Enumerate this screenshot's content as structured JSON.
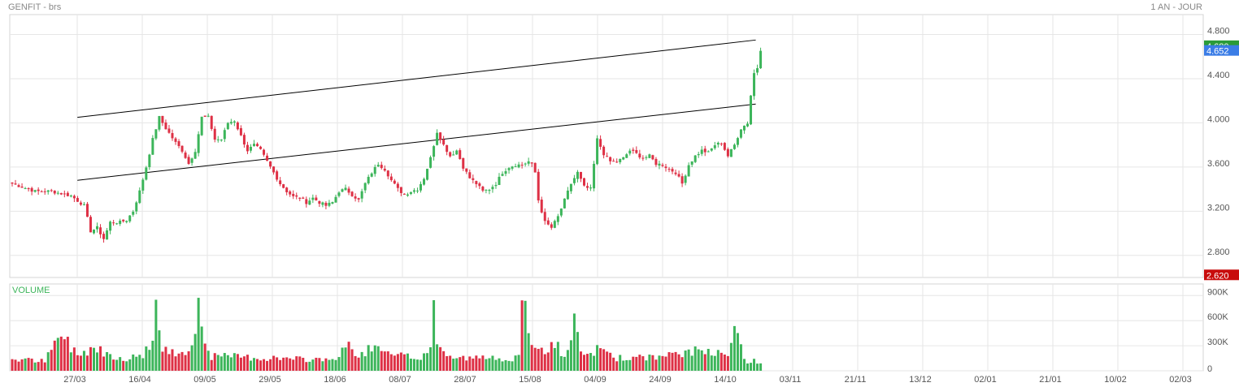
{
  "header": {
    "title": "GENFIT - brs",
    "period": "1 AN - JOUR"
  },
  "colors": {
    "up": "#3cb55a",
    "down": "#de3045",
    "grid": "#e6e6e6",
    "border": "#d4d4d4",
    "text": "#555555",
    "line": "#000000",
    "last_label_bg": "#3b7de6",
    "high_label_bg": "#2a9b38",
    "low_label_bg": "#c80c0c",
    "volume_label": "#3cb55a"
  },
  "chart_data": {
    "type": "candlestick",
    "x_labels": [
      "27/03",
      "16/04",
      "09/05",
      "29/05",
      "18/06",
      "08/07",
      "28/07",
      "15/08",
      "04/09",
      "24/09",
      "14/10",
      "03/11",
      "21/11",
      "13/12",
      "02/01",
      "21/01",
      "10/02",
      "02/03"
    ],
    "price_ticks": [
      "4.800",
      "4.400",
      "4.000",
      "3.600",
      "3.200",
      "2.800"
    ],
    "price_ylim": [
      2.6,
      4.98
    ],
    "price_labels": {
      "last": "4.652",
      "high": "4.680",
      "low": "2.620"
    },
    "volume": {
      "label": "VOLUME",
      "ticks": [
        "900K",
        "600K",
        "300K",
        "0"
      ],
      "ylim": [
        0,
        1000000
      ]
    },
    "close_anchors": [
      [
        0,
        3.45
      ],
      [
        7,
        3.38
      ],
      [
        12,
        3.38
      ],
      [
        18,
        3.34
      ],
      [
        22,
        3.25
      ],
      [
        24,
        3.02
      ],
      [
        26,
        3.05
      ],
      [
        28,
        2.95
      ],
      [
        30,
        3.1
      ],
      [
        33,
        3.1
      ],
      [
        35,
        3.12
      ],
      [
        37,
        3.2
      ],
      [
        39,
        3.38
      ],
      [
        41,
        3.6
      ],
      [
        43,
        3.85
      ],
      [
        45,
        4.05
      ],
      [
        47,
        3.95
      ],
      [
        50,
        3.82
      ],
      [
        52,
        3.75
      ],
      [
        54,
        3.63
      ],
      [
        56,
        3.75
      ],
      [
        58,
        4.05
      ],
      [
        60,
        4.05
      ],
      [
        62,
        3.85
      ],
      [
        64,
        3.85
      ],
      [
        66,
        4.0
      ],
      [
        68,
        4.02
      ],
      [
        70,
        3.88
      ],
      [
        72,
        3.75
      ],
      [
        74,
        3.8
      ],
      [
        76,
        3.75
      ],
      [
        78,
        3.65
      ],
      [
        80,
        3.55
      ],
      [
        82,
        3.45
      ],
      [
        84,
        3.38
      ],
      [
        86,
        3.33
      ],
      [
        88,
        3.32
      ],
      [
        90,
        3.28
      ],
      [
        92,
        3.32
      ],
      [
        94,
        3.28
      ],
      [
        96,
        3.25
      ],
      [
        98,
        3.28
      ],
      [
        100,
        3.38
      ],
      [
        102,
        3.4
      ],
      [
        104,
        3.35
      ],
      [
        106,
        3.3
      ],
      [
        108,
        3.45
      ],
      [
        110,
        3.55
      ],
      [
        112,
        3.63
      ],
      [
        114,
        3.58
      ],
      [
        116,
        3.48
      ],
      [
        118,
        3.4
      ],
      [
        120,
        3.35
      ],
      [
        122,
        3.38
      ],
      [
        124,
        3.4
      ],
      [
        126,
        3.5
      ],
      [
        128,
        3.68
      ],
      [
        130,
        3.92
      ],
      [
        132,
        3.8
      ],
      [
        134,
        3.7
      ],
      [
        136,
        3.75
      ],
      [
        138,
        3.6
      ],
      [
        140,
        3.5
      ],
      [
        142,
        3.45
      ],
      [
        144,
        3.38
      ],
      [
        146,
        3.4
      ],
      [
        148,
        3.45
      ],
      [
        150,
        3.55
      ],
      [
        152,
        3.6
      ],
      [
        154,
        3.62
      ],
      [
        156,
        3.62
      ],
      [
        158,
        3.65
      ],
      [
        159,
        3.62
      ],
      [
        160,
        3.55
      ],
      [
        161,
        3.3
      ],
      [
        163,
        3.1
      ],
      [
        165,
        3.05
      ],
      [
        167,
        3.15
      ],
      [
        169,
        3.3
      ],
      [
        171,
        3.45
      ],
      [
        173,
        3.55
      ],
      [
        175,
        3.42
      ],
      [
        177,
        3.4
      ],
      [
        179,
        3.85
      ],
      [
        181,
        3.72
      ],
      [
        183,
        3.65
      ],
      [
        185,
        3.65
      ],
      [
        187,
        3.68
      ],
      [
        189,
        3.75
      ],
      [
        191,
        3.72
      ],
      [
        193,
        3.68
      ],
      [
        195,
        3.7
      ],
      [
        197,
        3.63
      ],
      [
        199,
        3.62
      ],
      [
        201,
        3.58
      ],
      [
        203,
        3.55
      ],
      [
        205,
        3.45
      ],
      [
        207,
        3.62
      ],
      [
        209,
        3.7
      ],
      [
        211,
        3.75
      ],
      [
        213,
        3.73
      ],
      [
        215,
        3.8
      ],
      [
        217,
        3.82
      ],
      [
        219,
        3.7
      ],
      [
        221,
        3.8
      ],
      [
        223,
        3.95
      ],
      [
        225,
        4.0
      ],
      [
        226,
        4.25
      ],
      [
        227,
        4.45
      ],
      [
        228,
        4.5
      ],
      [
        229,
        4.652
      ]
    ],
    "volume_anchors": [
      [
        0,
        0.15
      ],
      [
        10,
        0.12
      ],
      [
        15,
        0.46
      ],
      [
        20,
        0.2
      ],
      [
        25,
        0.3
      ],
      [
        30,
        0.2
      ],
      [
        35,
        0.15
      ],
      [
        40,
        0.2
      ],
      [
        43,
        0.4
      ],
      [
        44,
        0.8
      ],
      [
        46,
        0.25
      ],
      [
        50,
        0.22
      ],
      [
        55,
        0.3
      ],
      [
        57,
        0.85
      ],
      [
        59,
        0.4
      ],
      [
        61,
        0.18
      ],
      [
        70,
        0.18
      ],
      [
        75,
        0.16
      ],
      [
        80,
        0.16
      ],
      [
        90,
        0.14
      ],
      [
        100,
        0.16
      ],
      [
        103,
        0.38
      ],
      [
        105,
        0.16
      ],
      [
        110,
        0.3
      ],
      [
        115,
        0.2
      ],
      [
        125,
        0.16
      ],
      [
        128,
        0.3
      ],
      [
        129,
        0.9
      ],
      [
        130,
        0.3
      ],
      [
        135,
        0.16
      ],
      [
        150,
        0.16
      ],
      [
        155,
        0.16
      ],
      [
        156,
        0.87
      ],
      [
        157,
        0.7
      ],
      [
        158,
        0.4
      ],
      [
        160,
        0.35
      ],
      [
        162,
        0.25
      ],
      [
        165,
        0.3
      ],
      [
        167,
        0.3
      ],
      [
        169,
        0.15
      ],
      [
        172,
        0.58
      ],
      [
        174,
        0.2
      ],
      [
        177,
        0.2
      ],
      [
        180,
        0.3
      ],
      [
        185,
        0.16
      ],
      [
        190,
        0.16
      ],
      [
        200,
        0.18
      ],
      [
        205,
        0.22
      ],
      [
        210,
        0.25
      ],
      [
        215,
        0.25
      ],
      [
        219,
        0.25
      ],
      [
        220,
        0.28
      ],
      [
        221,
        0.65
      ],
      [
        222,
        0.45
      ],
      [
        223,
        0.3
      ],
      [
        224,
        0.12
      ],
      [
        229,
        0.12
      ]
    ],
    "trendlines": [
      {
        "name": "upper",
        "x": [
          10,
          230
        ],
        "y": [
          4.05,
          4.75
        ]
      },
      {
        "name": "lower",
        "x": [
          10,
          230
        ],
        "y": [
          3.48,
          4.17
        ]
      }
    ],
    "n_candles": 230,
    "grid": true
  }
}
